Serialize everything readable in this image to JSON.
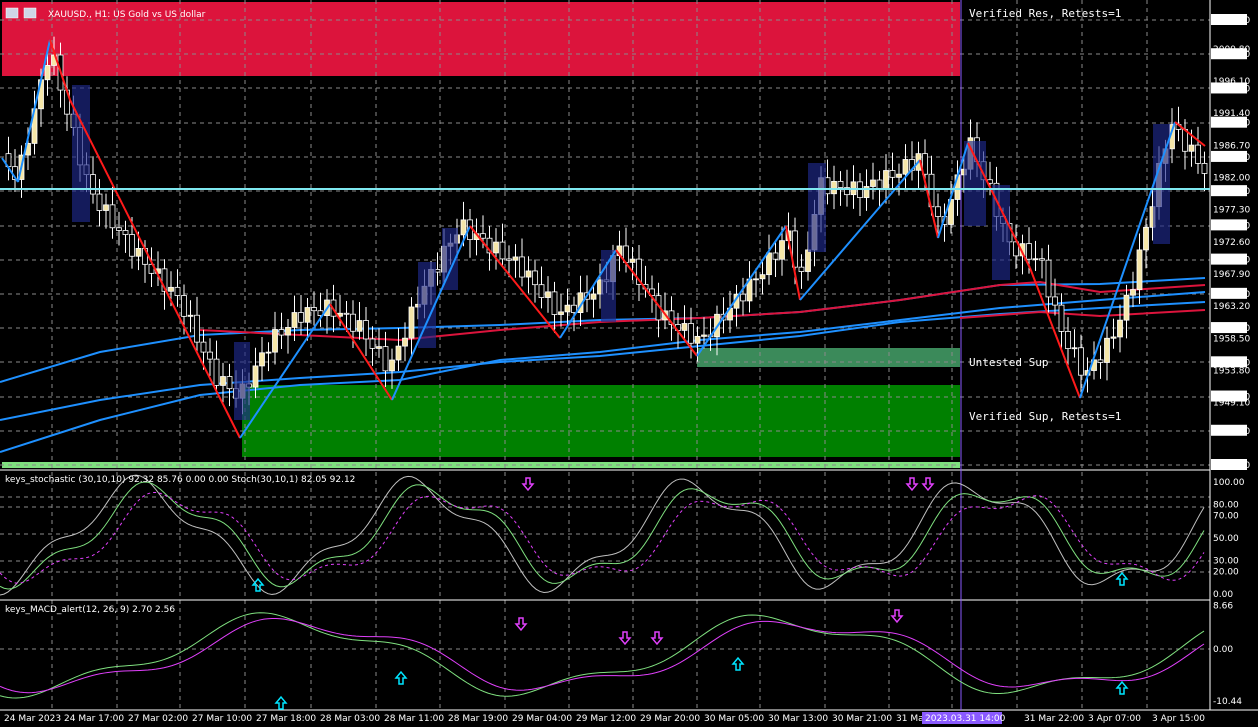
{
  "header": {
    "symbol_title": "XAUUSD., H1: US Gold vs US dollar"
  },
  "zones": {
    "resistance_label": "Verified Res, Retests=1",
    "untested_label": "Untested Sup",
    "support_label": "Verified Sup, Retests=1"
  },
  "price_axis": {
    "ticks": [
      "2005.00",
      "2000.80",
      "2000.00",
      "1996.10",
      "1995.00",
      "1991.40",
      "1990.00",
      "1986.70",
      "1985.00",
      "1982.00",
      "1980.00",
      "1977.30",
      "1975.00",
      "1972.60",
      "1970.00",
      "1967.90",
      "1965.00",
      "1963.20",
      "1960.00",
      "1958.50",
      "1955.00",
      "1953.80",
      "1950.00",
      "1949.10",
      "1945.00",
      "1940.00"
    ],
    "highlighted": [
      "2005.00",
      "2000.00",
      "1995.00",
      "1990.00",
      "1985.00",
      "1980.00",
      "1975.00",
      "1970.00",
      "1965.00",
      "1960.00",
      "1955.00",
      "1950.00",
      "1945.00",
      "1940.00"
    ],
    "current_price": "1980.00"
  },
  "stochastic": {
    "title": "keys_stochastic (30,10,10) 92.32 85.76 0.00 0.00 Stoch(30,10,1) 82.05 92.12",
    "ticks": [
      "100.00",
      "80.00",
      "70.00",
      "50.00",
      "30.00",
      "20.00",
      "0.00"
    ]
  },
  "macd": {
    "title": "keys_MACD_alert(12, 26, 9) 2.70 2.56",
    "ticks": [
      "8.66",
      "0.00",
      "-10.44"
    ]
  },
  "time_axis": {
    "labels": [
      "24 Mar 2023",
      "24 Mar 17:00",
      "27 Mar 02:00",
      "27 Mar 10:00",
      "27 Mar 18:00",
      "28 Mar 03:00",
      "28 Mar 11:00",
      "28 Mar 19:00",
      "29 Mar 04:00",
      "29 Mar 12:00",
      "29 Mar 20:00",
      "30 Mar 05:00",
      "30 Mar 13:00",
      "30 Mar 21:00",
      "31 Ma",
      "",
      "31 Mar 22:00",
      "3 Apr 07:00",
      "3 Apr 15:00"
    ],
    "crosshair_label": "2023.03.31 14:00"
  },
  "colors": {
    "background": "#000000",
    "bull_candle": "#f5e6a8",
    "bear_candle": "#1f2a8c",
    "resistance_zone": "#dc143c",
    "support_zone": "#008000",
    "untested_zone": "#3b8a5a",
    "zigzag_up": "#1e90ff",
    "zigzag_down": "#ff1a1a",
    "ma_line": "#1e90ff",
    "red_ma": "#dc143c",
    "current_price_line": "#7fe8f0",
    "signal_up": "#00e5ff",
    "signal_down": "#e040fb"
  }
}
